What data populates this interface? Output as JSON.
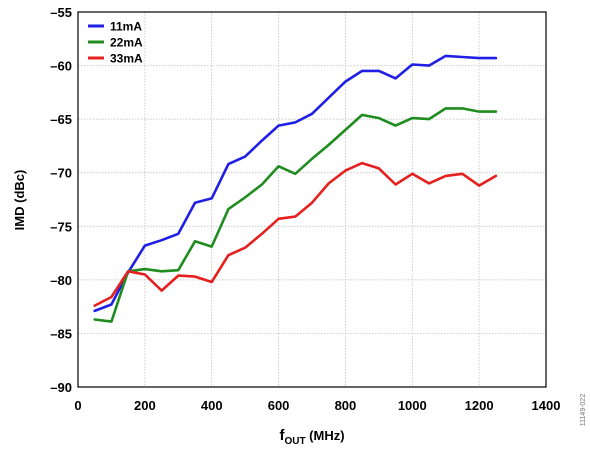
{
  "chart_data": {
    "type": "line",
    "xlabel_main": "f",
    "xlabel_sub": "OUT",
    "xlabel_rest": " (MHz)",
    "ylabel": "IMD (dBc)",
    "xlim": [
      0,
      1400
    ],
    "ylim": [
      -90,
      -55
    ],
    "xticks": [
      0,
      200,
      400,
      600,
      800,
      1000,
      1200,
      1400
    ],
    "yticks": [
      -55,
      -60,
      -65,
      -70,
      -75,
      -80,
      -85,
      -90
    ],
    "ytick_labels": [
      "–55",
      "–60",
      "–65",
      "–70",
      "–75",
      "–80",
      "–85",
      "–90"
    ],
    "grid": true,
    "legend_position": "top-left",
    "x": [
      50,
      100,
      150,
      200,
      250,
      300,
      350,
      400,
      450,
      500,
      550,
      600,
      650,
      700,
      750,
      800,
      850,
      900,
      950,
      1000,
      1050,
      1100,
      1150,
      1200,
      1250
    ],
    "series": [
      {
        "name": "11mA",
        "color": "#1f1fe6",
        "values": [
          -82.9,
          -82.3,
          -79.3,
          -76.8,
          -76.3,
          -75.7,
          -72.8,
          -72.4,
          -69.2,
          -68.5,
          -67.0,
          -65.6,
          -65.3,
          -64.5,
          -63.0,
          -61.5,
          -60.5,
          -60.5,
          -61.2,
          -59.9,
          -60.0,
          -59.1,
          -59.2,
          -59.3,
          -59.3
        ]
      },
      {
        "name": "22mA",
        "color": "#1f8c1f",
        "values": [
          -83.7,
          -83.9,
          -79.2,
          -79.0,
          -79.2,
          -79.1,
          -76.4,
          -76.9,
          -73.4,
          -72.3,
          -71.1,
          -69.4,
          -70.1,
          -68.7,
          -67.4,
          -66.0,
          -64.6,
          -64.9,
          -65.6,
          -64.9,
          -65.0,
          -64.0,
          -64.0,
          -64.3,
          -64.3
        ]
      },
      {
        "name": "33mA",
        "color": "#e61f1f",
        "values": [
          -82.4,
          -81.6,
          -79.2,
          -79.5,
          -81.0,
          -79.6,
          -79.7,
          -80.2,
          -77.7,
          -77.0,
          -75.7,
          -74.3,
          -74.1,
          -72.8,
          -71.0,
          -69.8,
          -69.1,
          -69.6,
          -71.1,
          -70.1,
          -71.0,
          -70.3,
          -70.1,
          -71.2,
          -70.3
        ]
      }
    ]
  },
  "figure_id": "11149-022"
}
